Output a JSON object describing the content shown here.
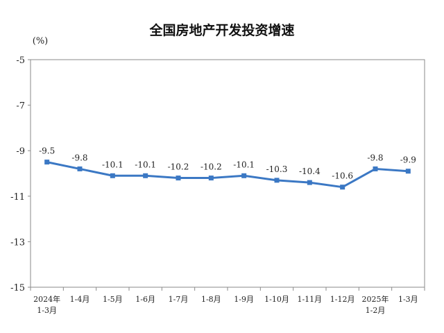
{
  "chart_data": {
    "type": "line",
    "title": "全国房地产开发投资增速",
    "unit": "(%)",
    "xlabel": "",
    "ylabel": "",
    "ylim": [
      -15,
      -5
    ],
    "yticks": [
      "-5",
      "-7",
      "-9",
      "-11",
      "-13",
      "-15"
    ],
    "categories": [
      [
        "2024年",
        "1-3月"
      ],
      [
        "1-4月"
      ],
      [
        "1-5月"
      ],
      [
        "1-6月"
      ],
      [
        "1-7月"
      ],
      [
        "1-8月"
      ],
      [
        "1-9月"
      ],
      [
        "1-10月"
      ],
      [
        "1-11月"
      ],
      [
        "1-12月"
      ],
      [
        "2025年",
        "1-2月"
      ],
      [
        "1-3月"
      ]
    ],
    "values": [
      -9.5,
      -9.8,
      -10.1,
      -10.1,
      -10.2,
      -10.2,
      -10.1,
      -10.3,
      -10.4,
      -10.6,
      -9.8,
      -9.9
    ],
    "labels": [
      "-9.5",
      "-9.8",
      "-10.1",
      "-10.1",
      "-10.2",
      "-10.2",
      "-10.1",
      "-10.3",
      "-10.4",
      "-10.6",
      "-9.8",
      "-9.9"
    ],
    "grid": false,
    "legend": "none",
    "line_color": "#3b78c4"
  }
}
